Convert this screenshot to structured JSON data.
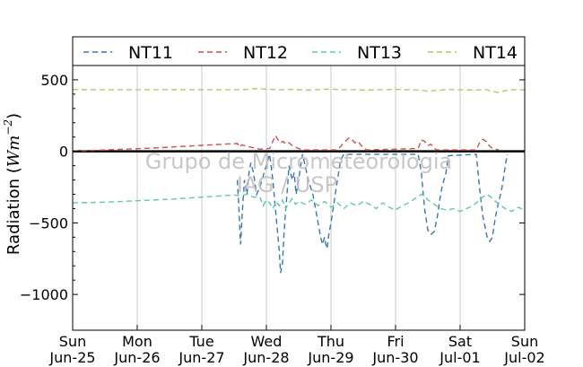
{
  "chart_data": {
    "type": "line",
    "ylabel_prefix": "Radiation (",
    "ylabel_unit": "Wm",
    "ylabel_exp": "−2",
    "ylabel_suffix": ")",
    "ylim": [
      -1250,
      600
    ],
    "yticks": [
      500,
      0,
      -500,
      -1000
    ],
    "ytick_labels": [
      "500",
      "0",
      "−500",
      "−1000"
    ],
    "xlim": [
      0,
      7
    ],
    "xtick_labels": [
      [
        "Sun",
        "Jun-25"
      ],
      [
        "Mon",
        "Jun-26"
      ],
      [
        "Tue",
        "Jun-27"
      ],
      [
        "Wed",
        "Jun-28"
      ],
      [
        "Thu",
        "Jun-29"
      ],
      [
        "Fri",
        "Jun-30"
      ],
      [
        "Sat",
        "Jul-01"
      ],
      [
        "Sun",
        "Jul-02"
      ]
    ],
    "grid": "vertical",
    "legend": "top",
    "watermark": [
      "Grupo de Micrometeorologia",
      "IAG / USP"
    ],
    "series": [
      {
        "name": "NT11",
        "color": "#3a76b0",
        "points": [
          [
            2.55,
            -200
          ],
          [
            2.58,
            -450
          ],
          [
            2.6,
            -650
          ],
          [
            2.63,
            -400
          ],
          [
            2.66,
            -200
          ],
          [
            2.7,
            -300
          ],
          [
            2.73,
            -150
          ],
          [
            2.76,
            -80
          ],
          [
            2.8,
            -150
          ],
          [
            2.85,
            -300
          ],
          [
            2.9,
            -250
          ],
          [
            3.05,
            -20
          ],
          [
            3.1,
            -200
          ],
          [
            3.15,
            -450
          ],
          [
            3.2,
            -700
          ],
          [
            3.22,
            -850
          ],
          [
            3.25,
            -780
          ],
          [
            3.27,
            -600
          ],
          [
            3.3,
            -400
          ],
          [
            3.32,
            -300
          ],
          [
            3.35,
            -100
          ],
          [
            3.4,
            -200
          ],
          [
            3.43,
            -150
          ],
          [
            3.46,
            -300
          ],
          [
            3.5,
            -200
          ],
          [
            3.53,
            -100
          ],
          [
            3.56,
            -20
          ],
          [
            3.65,
            -200
          ],
          [
            3.72,
            -300
          ],
          [
            3.78,
            -450
          ],
          [
            3.84,
            -600
          ],
          [
            3.87,
            -650
          ],
          [
            3.9,
            -600
          ],
          [
            3.92,
            -650
          ],
          [
            3.94,
            -680
          ],
          [
            3.96,
            -600
          ],
          [
            4.0,
            -500
          ],
          [
            4.05,
            -350
          ],
          [
            4.1,
            -200
          ],
          [
            4.15,
            -60
          ],
          [
            4.2,
            -20
          ],
          [
            5.35,
            -20
          ],
          [
            5.4,
            -150
          ],
          [
            5.45,
            -400
          ],
          [
            5.5,
            -550
          ],
          [
            5.55,
            -580
          ],
          [
            5.6,
            -560
          ],
          [
            5.65,
            -450
          ],
          [
            5.68,
            -350
          ],
          [
            5.72,
            -250
          ],
          [
            5.78,
            -150
          ],
          [
            5.82,
            -30
          ],
          [
            6.25,
            -20
          ],
          [
            6.3,
            -250
          ],
          [
            6.35,
            -450
          ],
          [
            6.42,
            -600
          ],
          [
            6.46,
            -630
          ],
          [
            6.5,
            -600
          ],
          [
            6.55,
            -450
          ],
          [
            6.6,
            -350
          ],
          [
            6.65,
            -250
          ],
          [
            6.7,
            -100
          ],
          [
            6.73,
            -20
          ]
        ]
      },
      {
        "name": "NT12",
        "color": "#d0504c",
        "points": [
          [
            0.0,
            3
          ],
          [
            0.4,
            8
          ],
          [
            0.8,
            15
          ],
          [
            1.2,
            22
          ],
          [
            1.6,
            32
          ],
          [
            2.0,
            42
          ],
          [
            2.4,
            52
          ],
          [
            2.55,
            55
          ],
          [
            2.58,
            30
          ],
          [
            2.62,
            45
          ],
          [
            2.7,
            35
          ],
          [
            2.8,
            25
          ],
          [
            2.9,
            15
          ],
          [
            3.05,
            20
          ],
          [
            3.1,
            70
          ],
          [
            3.14,
            110
          ],
          [
            3.18,
            80
          ],
          [
            3.22,
            60
          ],
          [
            3.26,
            70
          ],
          [
            3.3,
            50
          ],
          [
            3.35,
            60
          ],
          [
            3.4,
            40
          ],
          [
            3.45,
            30
          ],
          [
            3.5,
            20
          ],
          [
            3.55,
            10
          ],
          [
            4.1,
            10
          ],
          [
            4.2,
            60
          ],
          [
            4.28,
            95
          ],
          [
            4.33,
            80
          ],
          [
            4.37,
            60
          ],
          [
            4.42,
            70
          ],
          [
            4.47,
            40
          ],
          [
            4.55,
            10
          ],
          [
            5.35,
            20
          ],
          [
            5.4,
            80
          ],
          [
            5.45,
            70
          ],
          [
            5.5,
            40
          ],
          [
            5.55,
            50
          ],
          [
            5.6,
            20
          ],
          [
            5.65,
            10
          ],
          [
            6.25,
            10
          ],
          [
            6.3,
            60
          ],
          [
            6.35,
            85
          ],
          [
            6.4,
            70
          ],
          [
            6.45,
            40
          ],
          [
            6.5,
            20
          ],
          [
            6.6,
            10
          ]
        ]
      },
      {
        "name": "NT13",
        "color": "#5fcc9f",
        "points": [
          [
            0.0,
            -360
          ],
          [
            0.5,
            -355
          ],
          [
            1.0,
            -345
          ],
          [
            1.5,
            -335
          ],
          [
            2.0,
            -320
          ],
          [
            2.5,
            -305
          ],
          [
            2.6,
            -310
          ],
          [
            2.7,
            -300
          ],
          [
            2.8,
            -320
          ],
          [
            2.9,
            -320
          ],
          [
            2.95,
            -380
          ],
          [
            3.0,
            -340
          ],
          [
            3.05,
            -360
          ],
          [
            3.1,
            -400
          ],
          [
            3.15,
            -350
          ],
          [
            3.2,
            -380
          ],
          [
            3.25,
            -340
          ],
          [
            3.3,
            -400
          ],
          [
            3.35,
            -360
          ],
          [
            3.4,
            -330
          ],
          [
            3.45,
            -370
          ],
          [
            3.5,
            -350
          ],
          [
            3.6,
            -370
          ],
          [
            3.7,
            -340
          ],
          [
            3.8,
            -380
          ],
          [
            3.9,
            -350
          ],
          [
            4.0,
            -390
          ],
          [
            4.1,
            -360
          ],
          [
            4.2,
            -400
          ],
          [
            4.3,
            -360
          ],
          [
            4.4,
            -380
          ],
          [
            4.5,
            -350
          ],
          [
            4.6,
            -370
          ],
          [
            4.7,
            -400
          ],
          [
            4.8,
            -360
          ],
          [
            4.9,
            -390
          ],
          [
            5.0,
            -410
          ],
          [
            5.1,
            -380
          ],
          [
            5.2,
            -360
          ],
          [
            5.3,
            -330
          ],
          [
            5.4,
            -300
          ],
          [
            5.45,
            -310
          ],
          [
            5.5,
            -340
          ],
          [
            5.6,
            -370
          ],
          [
            5.7,
            -400
          ],
          [
            5.8,
            -410
          ],
          [
            5.9,
            -400
          ],
          [
            6.0,
            -420
          ],
          [
            6.1,
            -400
          ],
          [
            6.2,
            -380
          ],
          [
            6.3,
            -340
          ],
          [
            6.4,
            -300
          ],
          [
            6.45,
            -310
          ],
          [
            6.5,
            -330
          ],
          [
            6.6,
            -370
          ],
          [
            6.7,
            -400
          ],
          [
            6.8,
            -420
          ],
          [
            6.9,
            -390
          ],
          [
            7.0,
            -410
          ]
        ]
      },
      {
        "name": "NT14",
        "color": "#b8c46a",
        "points": [
          [
            0.0,
            432
          ],
          [
            0.5,
            430
          ],
          [
            1.0,
            430
          ],
          [
            1.5,
            432
          ],
          [
            2.0,
            430
          ],
          [
            2.5,
            430
          ],
          [
            2.7,
            433
          ],
          [
            2.8,
            438
          ],
          [
            3.0,
            435
          ],
          [
            3.2,
            430
          ],
          [
            3.4,
            433
          ],
          [
            3.6,
            428
          ],
          [
            3.8,
            432
          ],
          [
            4.0,
            435
          ],
          [
            4.2,
            430
          ],
          [
            4.4,
            432
          ],
          [
            4.5,
            428
          ],
          [
            4.7,
            430
          ],
          [
            4.9,
            432
          ],
          [
            5.0,
            434
          ],
          [
            5.2,
            430
          ],
          [
            5.4,
            428
          ],
          [
            5.5,
            420
          ],
          [
            5.6,
            425
          ],
          [
            5.8,
            432
          ],
          [
            6.0,
            430
          ],
          [
            6.2,
            428
          ],
          [
            6.4,
            432
          ],
          [
            6.5,
            420
          ],
          [
            6.6,
            410
          ],
          [
            6.7,
            425
          ],
          [
            6.8,
            430
          ],
          [
            6.9,
            432
          ],
          [
            7.0,
            428
          ]
        ]
      }
    ]
  }
}
